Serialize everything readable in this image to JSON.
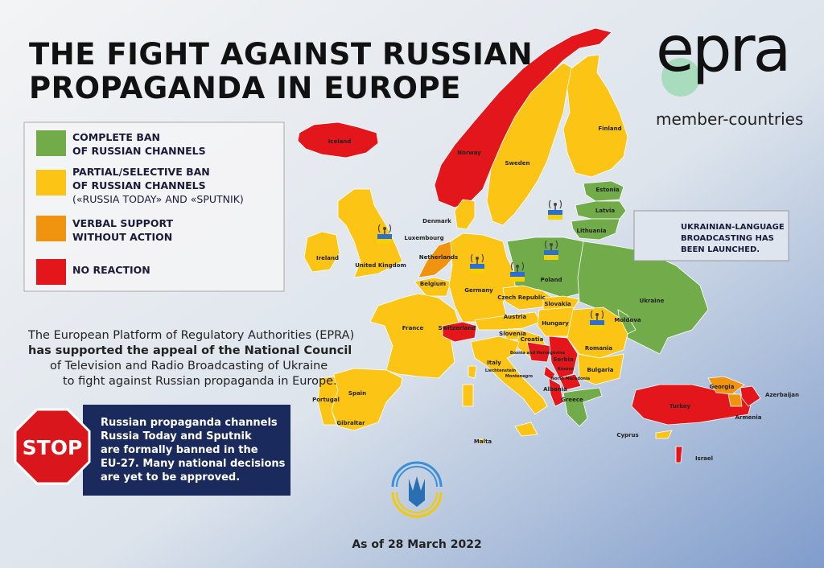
{
  "header": {
    "title_lines": [
      "THE FIGHT AGAINST RUSSIAN",
      "PROPAGANDA IN EUROPE"
    ]
  },
  "logo": {
    "name": "epra",
    "subtitle": "member-countries"
  },
  "legend": {
    "items": [
      {
        "lines": [
          "COMPLETE BAN",
          "OF RUSSIAN CHANNELS"
        ],
        "color": "#72ab4a"
      },
      {
        "lines": [
          "PARTIAL/SELECTIVE BAN",
          "OF RUSSIAN CHANNELS",
          "(«RUSSIA TODAY» AND «SPUTNIK)"
        ],
        "color": "#fcc515"
      },
      {
        "lines": [
          "VERBAL SUPPORT",
          "WITHOUT ACTION"
        ],
        "color": "#f0930f"
      },
      {
        "lines": [
          "NO REACTION"
        ],
        "color": "#e3171b"
      }
    ]
  },
  "broadcast_note": {
    "lines": [
      "UKRAINIAN-LANGUAGE",
      "BROADCASTING HAS",
      "BEEN LAUNCHED."
    ]
  },
  "paragraph": {
    "lines": [
      "The European Platform of Regulatory Authorities (EPRA)",
      "has supported the appeal of the National Council",
      "of Television and Radio Broadcasting of Ukraine",
      "to fight against Russian propaganda in Europe."
    ]
  },
  "stop": {
    "sign": "STOP",
    "lines": [
      "Russian propaganda channels",
      "Russia Today and Sputnik",
      "are formally banned in the",
      "EU-27. Many national decisions",
      "are yet to be approved."
    ]
  },
  "date": "As of 28 March 2022",
  "countries": [
    "Iceland",
    "Norway",
    "Sweden",
    "Finland",
    "Estonia",
    "Latvia",
    "Lithuania",
    "Denmark",
    "Luxembourg",
    "Ireland",
    "United Kingdom",
    "Netherlands",
    "Belgium",
    "Germany",
    "Poland",
    "Czech Republic",
    "Slovakia",
    "Ukraine",
    "Moldova",
    "France",
    "Switzerland",
    "Austria",
    "Hungary",
    "Slovenia",
    "Croatia",
    "Romania",
    "Bosnia and Herzegovina",
    "Serbia",
    "Italy",
    "Liechtenstein",
    "Montenegro",
    "Kosovo",
    "North Macedonia",
    "Bulgaria",
    "Albania",
    "Greece",
    "Portugal",
    "Spain",
    "Gibraltar",
    "Malta",
    "Turkey",
    "Georgia",
    "Armenia",
    "Azerbaijan",
    "Cyprus",
    "Israel"
  ]
}
